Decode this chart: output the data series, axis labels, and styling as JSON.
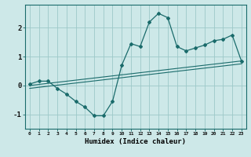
{
  "title": "",
  "xlabel": "Humidex (Indice chaleur)",
  "ylabel": "",
  "background_color": "#cde8e8",
  "grid_color": "#9dc8c8",
  "line_color": "#1a6b6b",
  "x_data": [
    0,
    1,
    2,
    3,
    4,
    5,
    6,
    7,
    8,
    9,
    10,
    11,
    12,
    13,
    14,
    15,
    16,
    17,
    18,
    19,
    20,
    21,
    22,
    23
  ],
  "y_data": [
    0.05,
    0.15,
    0.15,
    -0.1,
    -0.3,
    -0.55,
    -0.75,
    -1.05,
    -1.05,
    -0.55,
    0.7,
    1.45,
    1.35,
    2.2,
    2.5,
    2.35,
    1.35,
    1.2,
    1.3,
    1.4,
    1.55,
    1.6,
    1.75,
    0.85
  ],
  "trend_line": [
    [
      0,
      23
    ],
    [
      0.0,
      0.85
    ]
  ],
  "trend_line2": [
    [
      0,
      23
    ],
    [
      -0.1,
      0.75
    ]
  ],
  "ylim": [
    -1.5,
    2.8
  ],
  "xlim": [
    -0.5,
    23.5
  ],
  "xticks": [
    0,
    1,
    2,
    3,
    4,
    5,
    6,
    7,
    8,
    9,
    10,
    11,
    12,
    13,
    14,
    15,
    16,
    17,
    18,
    19,
    20,
    21,
    22,
    23
  ],
  "yticks": [
    -1,
    0,
    1,
    2
  ],
  "xtick_labels": [
    "0",
    "1",
    "2",
    "3",
    "4",
    "5",
    "6",
    "7",
    "8",
    "9",
    "10",
    "11",
    "12",
    "13",
    "14",
    "15",
    "16",
    "17",
    "18",
    "19",
    "20",
    "21",
    "22",
    "23"
  ]
}
